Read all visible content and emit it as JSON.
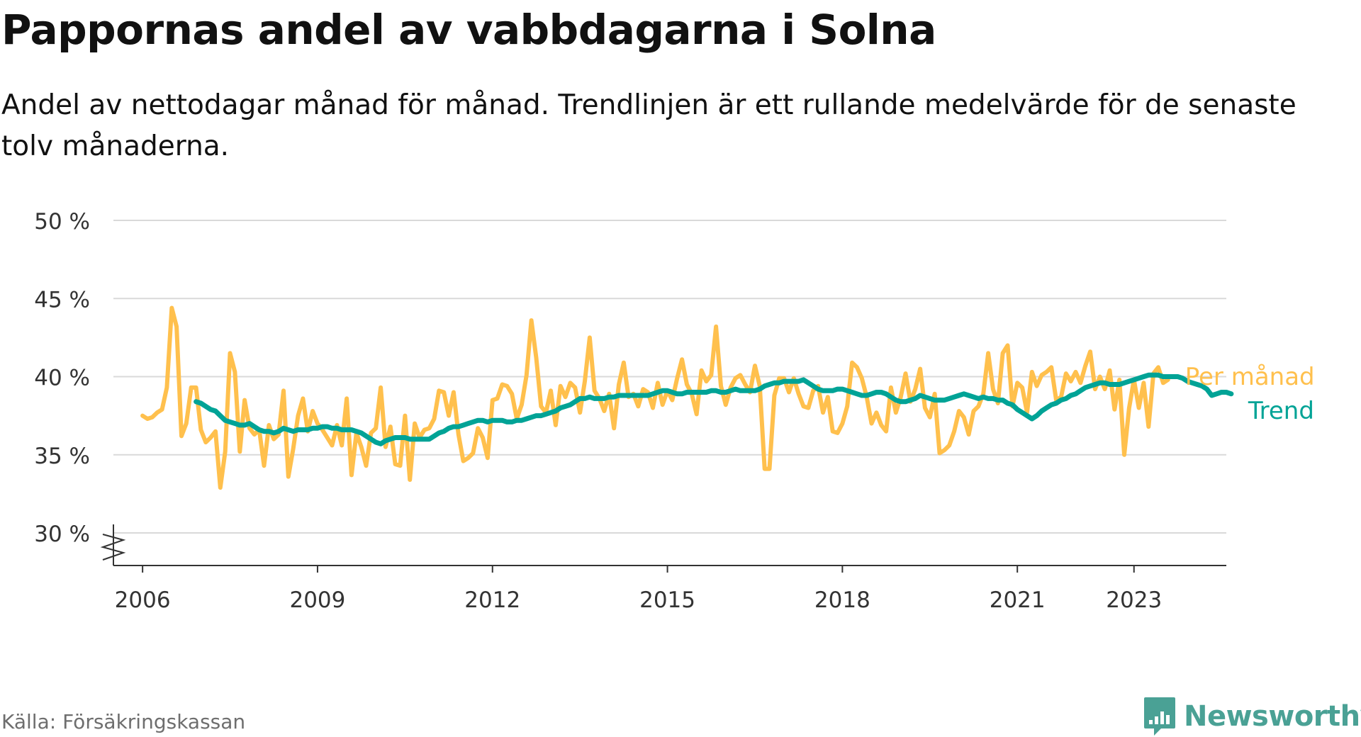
{
  "title": "Pappornas andel av vabbdagarna i Solna",
  "subtitle": "Andel av nettodagar månad för månad. Trendlinjen är ett rullande medelvärde för de senaste tolv månaderna.",
  "source": "Källa: Försäkringskassan",
  "brand": "Newsworthy",
  "colors": {
    "monthly": "#ffc04d",
    "trend": "#00a396",
    "grid": "#d9d9d9",
    "axis": "#333333",
    "brand": "#4aa195"
  },
  "chart_data": {
    "type": "line",
    "y_unit": "%",
    "ylim": [
      30,
      50
    ],
    "y_axis_broken": true,
    "grid": true,
    "y_ticks": [
      30,
      35,
      40,
      45,
      50
    ],
    "y_tick_labels": [
      "30 %",
      "35 %",
      "40 %",
      "45 %",
      "50 %"
    ],
    "x_tick_labels": [
      "2006",
      "2009",
      "2012",
      "2015",
      "2018",
      "2021",
      "2023"
    ],
    "x_tick_dates": [
      "2006-01",
      "2009-01",
      "2012-01",
      "2015-01",
      "2018-01",
      "2021-01",
      "2023-01"
    ],
    "x_range": [
      "2005-07",
      "2024-08"
    ],
    "series": [
      {
        "name": "Per månad",
        "start": "2006-01",
        "values": [
          37.5,
          37.3,
          37.4,
          37.7,
          37.9,
          39.3,
          44.4,
          43.2,
          36.2,
          37.0,
          39.3,
          39.3,
          36.6,
          35.8,
          36.1,
          36.5,
          32.9,
          35.2,
          41.5,
          40.3,
          35.2,
          38.5,
          36.7,
          36.3,
          36.6,
          34.3,
          36.9,
          36.0,
          36.3,
          39.1,
          33.6,
          35.4,
          37.5,
          38.6,
          36.5,
          37.8,
          37.0,
          36.6,
          36.1,
          35.6,
          36.9,
          35.6,
          38.6,
          33.7,
          36.4,
          35.5,
          34.3,
          36.4,
          36.7,
          39.3,
          35.5,
          36.8,
          34.4,
          34.3,
          37.5,
          33.4,
          37.0,
          36.1,
          36.6,
          36.7,
          37.3,
          39.1,
          39.0,
          37.5,
          39.0,
          36.3,
          34.6,
          34.8,
          35.1,
          36.7,
          36.1,
          34.8,
          38.5,
          38.6,
          39.5,
          39.4,
          38.9,
          37.3,
          38.2,
          40.1,
          43.6,
          41.2,
          38.1,
          37.7,
          39.1,
          36.9,
          39.4,
          38.7,
          39.6,
          39.3,
          37.7,
          39.7,
          42.5,
          39.1,
          38.6,
          37.8,
          38.9,
          36.7,
          39.5,
          40.9,
          38.7,
          38.9,
          38.1,
          39.2,
          39.0,
          38.0,
          39.6,
          38.2,
          39.1,
          38.5,
          39.9,
          41.1,
          39.5,
          38.9,
          37.6,
          40.4,
          39.7,
          40.1,
          43.2,
          39.4,
          38.2,
          39.3,
          39.9,
          40.1,
          39.5,
          39.0,
          40.7,
          39.4,
          34.1,
          34.1,
          38.8,
          39.9,
          39.9,
          39.0,
          39.9,
          38.9,
          38.1,
          38.0,
          39.1,
          39.4,
          37.7,
          38.7,
          36.5,
          36.4,
          37.0,
          38.1,
          40.9,
          40.6,
          39.9,
          38.7,
          37.0,
          37.7,
          36.9,
          36.5,
          39.3,
          37.7,
          38.7,
          40.2,
          38.4,
          39.2,
          40.5,
          38.0,
          37.4,
          38.9,
          35.1,
          35.3,
          35.6,
          36.5,
          37.8,
          37.4,
          36.3,
          37.8,
          38.1,
          38.9,
          41.5,
          39.2,
          38.3,
          41.5,
          42.0,
          38.1,
          39.6,
          39.3,
          37.7,
          40.3,
          39.4,
          40.1,
          40.3,
          40.6,
          38.5,
          38.7,
          40.2,
          39.7,
          40.3,
          39.6,
          40.7,
          41.6,
          39.2,
          40.0,
          39.2,
          40.4,
          37.9,
          39.8,
          35.0,
          38.0,
          39.8,
          38.0,
          39.6,
          36.8,
          40.2,
          40.6,
          39.6,
          39.8
        ]
      },
      {
        "name": "Trend",
        "start": "2006-12",
        "values": [
          38.4,
          38.3,
          38.1,
          37.9,
          37.8,
          37.5,
          37.2,
          37.1,
          37.0,
          36.9,
          36.9,
          37.0,
          36.8,
          36.6,
          36.5,
          36.5,
          36.4,
          36.5,
          36.7,
          36.6,
          36.5,
          36.6,
          36.6,
          36.6,
          36.7,
          36.7,
          36.8,
          36.8,
          36.7,
          36.7,
          36.6,
          36.6,
          36.6,
          36.5,
          36.4,
          36.2,
          36.0,
          35.8,
          35.7,
          35.9,
          36.0,
          36.1,
          36.1,
          36.1,
          36.0,
          36.0,
          36.0,
          36.0,
          36.0,
          36.2,
          36.4,
          36.5,
          36.7,
          36.8,
          36.8,
          36.9,
          37.0,
          37.1,
          37.2,
          37.2,
          37.1,
          37.2,
          37.2,
          37.2,
          37.1,
          37.1,
          37.2,
          37.2,
          37.3,
          37.4,
          37.5,
          37.5,
          37.6,
          37.7,
          37.8,
          38.0,
          38.1,
          38.2,
          38.4,
          38.6,
          38.6,
          38.7,
          38.6,
          38.6,
          38.6,
          38.7,
          38.7,
          38.8,
          38.8,
          38.8,
          38.8,
          38.8,
          38.8,
          38.8,
          38.9,
          39.0,
          39.1,
          39.1,
          39.0,
          38.9,
          38.9,
          39.0,
          39.0,
          39.0,
          39.0,
          39.0,
          39.1,
          39.1,
          39.0,
          39.0,
          39.1,
          39.2,
          39.1,
          39.1,
          39.1,
          39.1,
          39.2,
          39.4,
          39.5,
          39.6,
          39.6,
          39.7,
          39.7,
          39.7,
          39.7,
          39.8,
          39.6,
          39.4,
          39.2,
          39.1,
          39.1,
          39.1,
          39.2,
          39.2,
          39.1,
          39.0,
          38.9,
          38.8,
          38.8,
          38.9,
          39.0,
          39.0,
          38.9,
          38.7,
          38.5,
          38.4,
          38.4,
          38.5,
          38.6,
          38.8,
          38.7,
          38.6,
          38.5,
          38.5,
          38.5,
          38.6,
          38.7,
          38.8,
          38.9,
          38.8,
          38.7,
          38.6,
          38.7,
          38.6,
          38.6,
          38.5,
          38.5,
          38.3,
          38.2,
          37.9,
          37.7,
          37.5,
          37.3,
          37.5,
          37.8,
          38.0,
          38.2,
          38.3,
          38.5,
          38.6,
          38.8,
          38.9,
          39.1,
          39.3,
          39.4,
          39.5,
          39.6,
          39.6,
          39.5,
          39.5,
          39.5,
          39.6,
          39.7,
          39.8,
          39.9,
          40.0,
          40.1,
          40.1,
          40.1,
          40.0,
          40.0,
          40.0,
          40.0,
          39.9,
          39.7,
          39.6,
          39.5,
          39.4,
          39.2,
          38.8,
          38.9,
          39.0,
          39.0,
          38.9
        ]
      }
    ]
  }
}
